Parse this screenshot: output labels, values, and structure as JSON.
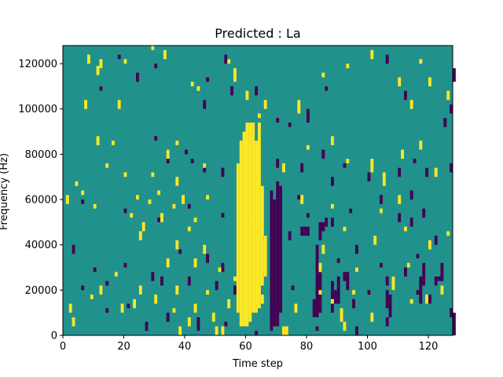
{
  "chart_data": {
    "type": "heatmap",
    "title": "Predicted : La",
    "xlabel": "Time step",
    "ylabel": "Frequency (Hz)",
    "xlim": [
      0,
      128
    ],
    "ylim": [
      0,
      128000
    ],
    "x_ticks": [
      0,
      20,
      40,
      60,
      80,
      100,
      120
    ],
    "y_ticks": [
      0,
      20000,
      40000,
      60000,
      80000,
      100000,
      120000
    ],
    "x_tick_labels": [
      "0",
      "20",
      "40",
      "60",
      "80",
      "100",
      "120"
    ],
    "y_tick_labels": [
      "0",
      "20000",
      "40000",
      "60000",
      "80000",
      "100000",
      "120000"
    ],
    "colormap": "viridis",
    "background_color": "#21918c",
    "high_color": "#fde725",
    "low_color": "#440154",
    "grid": false,
    "cell_width_steps": 1,
    "cell_height_hz": 2000,
    "high_cells": [
      [
        8,
        120000,
        124000
      ],
      [
        12,
        118000,
        122000
      ],
      [
        11,
        115000,
        119000
      ],
      [
        20,
        120000,
        122000
      ],
      [
        29,
        126000,
        128000
      ],
      [
        33,
        122000,
        126000
      ],
      [
        44,
        108000,
        110000
      ],
      [
        42,
        110000,
        112000
      ],
      [
        54,
        120000,
        122000
      ],
      [
        56,
        112000,
        118000
      ],
      [
        60,
        104000,
        108000
      ],
      [
        66,
        100000,
        104000
      ],
      [
        64,
        96000,
        98000
      ],
      [
        77,
        98000,
        104000
      ],
      [
        85,
        114000,
        116000
      ],
      [
        93,
        118000,
        120000
      ],
      [
        101,
        122000,
        126000
      ],
      [
        110,
        110000,
        114000
      ],
      [
        114,
        100000,
        104000
      ],
      [
        120,
        110000,
        114000
      ],
      [
        126,
        104000,
        108000
      ],
      [
        117,
        120000,
        122000
      ],
      [
        18,
        100000,
        104000
      ],
      [
        7,
        100000,
        104000
      ],
      [
        37,
        84000,
        86000
      ],
      [
        34,
        78000,
        82000
      ],
      [
        16,
        84000,
        86000
      ],
      [
        14,
        74000,
        76000
      ],
      [
        20,
        70000,
        72000
      ],
      [
        11,
        84000,
        88000
      ],
      [
        29,
        70000,
        72000
      ],
      [
        37,
        66000,
        70000
      ],
      [
        46,
        74000,
        76000
      ],
      [
        72,
        72000,
        76000
      ],
      [
        80,
        82000,
        84000
      ],
      [
        88,
        84000,
        88000
      ],
      [
        93,
        76000,
        78000
      ],
      [
        101,
        72000,
        78000
      ],
      [
        111,
        78000,
        82000
      ],
      [
        117,
        82000,
        86000
      ],
      [
        122,
        70000,
        74000
      ],
      [
        4,
        66000,
        68000
      ],
      [
        6,
        62000,
        64000
      ],
      [
        1,
        58000,
        62000
      ],
      [
        10,
        56000,
        58000
      ],
      [
        24,
        60000,
        62000
      ],
      [
        28,
        58000,
        60000
      ],
      [
        31,
        62000,
        64000
      ],
      [
        36,
        56000,
        58000
      ],
      [
        39,
        58000,
        62000
      ],
      [
        47,
        60000,
        62000
      ],
      [
        22,
        52000,
        54000
      ],
      [
        26,
        46000,
        50000
      ],
      [
        25,
        42000,
        46000
      ],
      [
        32,
        50000,
        54000
      ],
      [
        43,
        50000,
        52000
      ],
      [
        41,
        46000,
        48000
      ],
      [
        37,
        38000,
        42000
      ],
      [
        46,
        36000,
        40000
      ],
      [
        34,
        30000,
        34000
      ],
      [
        43,
        30000,
        34000
      ],
      [
        51,
        28000,
        30000
      ],
      [
        56,
        24000,
        26000
      ],
      [
        62,
        50000,
        52000
      ],
      [
        78,
        58000,
        62000
      ],
      [
        88,
        56000,
        58000
      ],
      [
        92,
        46000,
        48000
      ],
      [
        85,
        36000,
        40000
      ],
      [
        84,
        28000,
        32000
      ],
      [
        96,
        28000,
        30000
      ],
      [
        102,
        40000,
        44000
      ],
      [
        104,
        54000,
        56000
      ],
      [
        110,
        58000,
        62000
      ],
      [
        105,
        66000,
        72000
      ],
      [
        112,
        46000,
        48000
      ],
      [
        113,
        30000,
        32000
      ],
      [
        120,
        38000,
        42000
      ],
      [
        126,
        44000,
        46000
      ],
      [
        2,
        10000,
        14000
      ],
      [
        3,
        4000,
        8000
      ],
      [
        9,
        16000,
        18000
      ],
      [
        12,
        18000,
        22000
      ],
      [
        17,
        26000,
        28000
      ],
      [
        19,
        10000,
        14000
      ],
      [
        23,
        12000,
        16000
      ],
      [
        25,
        18000,
        22000
      ],
      [
        30,
        14000,
        18000
      ],
      [
        36,
        10000,
        12000
      ],
      [
        37,
        18000,
        22000
      ],
      [
        38,
        0,
        4000
      ],
      [
        41,
        4000,
        8000
      ],
      [
        43,
        10000,
        14000
      ],
      [
        47,
        18000,
        20000
      ],
      [
        49,
        6000,
        10000
      ],
      [
        50,
        0,
        4000
      ],
      [
        52,
        0,
        4000
      ],
      [
        54,
        12000,
        16000
      ],
      [
        65,
        14000,
        18000
      ],
      [
        76,
        10000,
        14000
      ],
      [
        84,
        18000,
        20000
      ],
      [
        88,
        14000,
        16000
      ],
      [
        91,
        6000,
        12000
      ],
      [
        92,
        2000,
        6000
      ],
      [
        95,
        18000,
        20000
      ],
      [
        101,
        6000,
        10000
      ],
      [
        108,
        20000,
        26000
      ],
      [
        114,
        14000,
        16000
      ],
      [
        119,
        14000,
        18000
      ],
      [
        124,
        18000,
        22000
      ]
    ],
    "high_columns": [
      [
        57,
        10000,
        76000
      ],
      [
        58,
        4000,
        86000
      ],
      [
        59,
        4000,
        90000
      ],
      [
        60,
        4000,
        94000
      ],
      [
        61,
        6000,
        94000
      ],
      [
        62,
        10000,
        94000
      ],
      [
        63,
        10000,
        86000
      ],
      [
        64,
        12000,
        94000
      ],
      [
        65,
        22000,
        66000
      ],
      [
        66,
        26000,
        44000
      ],
      [
        72,
        0,
        4000
      ],
      [
        73,
        0,
        4000
      ]
    ],
    "low_cells": [
      [
        18,
        122000,
        124000
      ],
      [
        30,
        118000,
        120000
      ],
      [
        53,
        120000,
        124000
      ],
      [
        55,
        106000,
        110000
      ],
      [
        12,
        108000,
        110000
      ],
      [
        24,
        112000,
        116000
      ],
      [
        47,
        112000,
        114000
      ],
      [
        46,
        100000,
        104000
      ],
      [
        63,
        106000,
        110000
      ],
      [
        70,
        94000,
        96000
      ],
      [
        74,
        92000,
        94000
      ],
      [
        80,
        94000,
        100000
      ],
      [
        86,
        108000,
        110000
      ],
      [
        106,
        120000,
        124000
      ],
      [
        112,
        104000,
        108000
      ],
      [
        125,
        92000,
        96000
      ],
      [
        128,
        112000,
        118000
      ],
      [
        127,
        98000,
        102000
      ],
      [
        30,
        86000,
        88000
      ],
      [
        40,
        80000,
        82000
      ],
      [
        46,
        72000,
        76000
      ],
      [
        52,
        70000,
        74000
      ],
      [
        34,
        76000,
        78000
      ],
      [
        42,
        76000,
        78000
      ],
      [
        70,
        74000,
        78000
      ],
      [
        78,
        72000,
        76000
      ],
      [
        85,
        78000,
        82000
      ],
      [
        88,
        66000,
        70000
      ],
      [
        92,
        74000,
        76000
      ],
      [
        100,
        68000,
        72000
      ],
      [
        110,
        70000,
        74000
      ],
      [
        115,
        76000,
        78000
      ],
      [
        119,
        70000,
        74000
      ],
      [
        127,
        72000,
        76000
      ],
      [
        6,
        58000,
        60000
      ],
      [
        20,
        54000,
        56000
      ],
      [
        31,
        50000,
        52000
      ],
      [
        41,
        56000,
        58000
      ],
      [
        52,
        52000,
        54000
      ],
      [
        77,
        60000,
        62000
      ],
      [
        80,
        52000,
        54000
      ],
      [
        94,
        54000,
        56000
      ],
      [
        104,
        58000,
        62000
      ],
      [
        110,
        50000,
        54000
      ],
      [
        114,
        60000,
        64000
      ],
      [
        118,
        52000,
        56000
      ],
      [
        122,
        40000,
        44000
      ],
      [
        3,
        36000,
        40000
      ],
      [
        10,
        28000,
        30000
      ],
      [
        20,
        30000,
        32000
      ],
      [
        29,
        24000,
        28000
      ],
      [
        38,
        36000,
        38000
      ],
      [
        47,
        32000,
        36000
      ],
      [
        52,
        28000,
        32000
      ],
      [
        74,
        42000,
        46000
      ],
      [
        84,
        42000,
        46000
      ],
      [
        90,
        32000,
        34000
      ],
      [
        96,
        36000,
        40000
      ],
      [
        104,
        30000,
        32000
      ],
      [
        112,
        26000,
        30000
      ],
      [
        116,
        34000,
        36000
      ],
      [
        123,
        24000,
        26000
      ],
      [
        6,
        20000,
        22000
      ],
      [
        14,
        22000,
        24000
      ],
      [
        32,
        22000,
        26000
      ],
      [
        41,
        22000,
        26000
      ],
      [
        50,
        20000,
        24000
      ],
      [
        56,
        18000,
        22000
      ],
      [
        75,
        20000,
        22000
      ],
      [
        92,
        24000,
        28000
      ],
      [
        100,
        18000,
        20000
      ],
      [
        106,
        22000,
        26000
      ],
      [
        116,
        18000,
        20000
      ],
      [
        120,
        14000,
        18000
      ],
      [
        14,
        10000,
        12000
      ],
      [
        21,
        12000,
        14000
      ],
      [
        27,
        2000,
        6000
      ],
      [
        34,
        6000,
        10000
      ],
      [
        44,
        2000,
        8000
      ],
      [
        53,
        4000,
        6000
      ],
      [
        63,
        0,
        2000
      ],
      [
        83,
        2000,
        4000
      ],
      [
        96,
        0,
        4000
      ],
      [
        106,
        4000,
        8000
      ],
      [
        127,
        8000,
        12000
      ]
    ],
    "low_columns": [
      [
        68,
        2000,
        64000
      ],
      [
        69,
        4000,
        60000
      ],
      [
        70,
        4000,
        68000
      ],
      [
        71,
        10000,
        66000
      ],
      [
        82,
        8000,
        16000
      ],
      [
        83,
        8000,
        40000
      ],
      [
        84,
        10000,
        28000
      ],
      [
        88,
        10000,
        24000
      ],
      [
        89,
        14000,
        20000
      ],
      [
        90,
        14000,
        26000
      ],
      [
        93,
        20000,
        28000
      ],
      [
        95,
        12000,
        16000
      ],
      [
        106,
        12000,
        20000
      ],
      [
        107,
        8000,
        18000
      ],
      [
        117,
        14000,
        26000
      ],
      [
        118,
        22000,
        32000
      ],
      [
        78,
        44000,
        48000
      ],
      [
        79,
        44000,
        48000
      ],
      [
        80,
        44000,
        48000
      ],
      [
        84,
        46000,
        50000
      ],
      [
        85,
        46000,
        50000
      ],
      [
        86,
        48000,
        52000
      ],
      [
        88,
        48000,
        52000
      ],
      [
        114,
        48000,
        52000
      ],
      [
        122,
        22000,
        26000
      ],
      [
        124,
        24000,
        32000
      ],
      [
        128,
        0,
        10000
      ]
    ]
  }
}
